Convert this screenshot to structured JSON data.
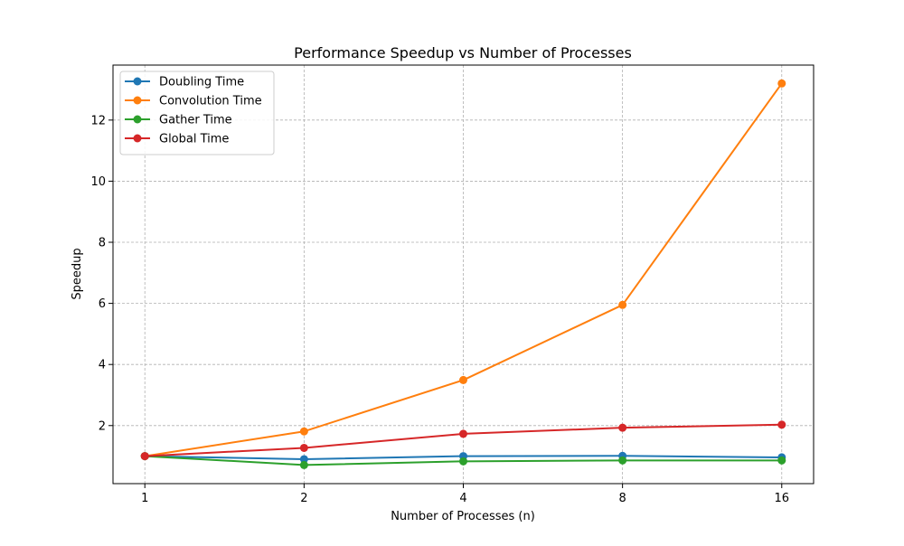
{
  "chart_data": {
    "type": "line",
    "title": "Performance Speedup vs Number of Processes",
    "xlabel": "Number of Processes (n)",
    "ylabel": "Speedup",
    "x_scale": "log2",
    "x": [
      1,
      2,
      4,
      8,
      16
    ],
    "x_tick_labels": [
      "1",
      "2",
      "4",
      "8",
      "16"
    ],
    "y_ticks": [
      2,
      4,
      6,
      8,
      10,
      12
    ],
    "y_tick_labels": [
      "2",
      "4",
      "6",
      "8",
      "10",
      "12"
    ],
    "ylim": [
      0.1,
      13.8
    ],
    "grid": true,
    "legend_position": "top-left",
    "series": [
      {
        "name": "Doubling Time",
        "color": "#1f77b4",
        "values": [
          1.0,
          0.9,
          1.0,
          1.01,
          0.96
        ]
      },
      {
        "name": "Convolution Time",
        "color": "#ff7f0e",
        "values": [
          1.0,
          1.81,
          3.49,
          5.95,
          13.2
        ]
      },
      {
        "name": "Gather Time",
        "color": "#2ca02c",
        "values": [
          1.0,
          0.71,
          0.83,
          0.86,
          0.86
        ]
      },
      {
        "name": "Global Time",
        "color": "#d62728",
        "values": [
          1.0,
          1.27,
          1.73,
          1.93,
          2.03
        ]
      }
    ]
  }
}
